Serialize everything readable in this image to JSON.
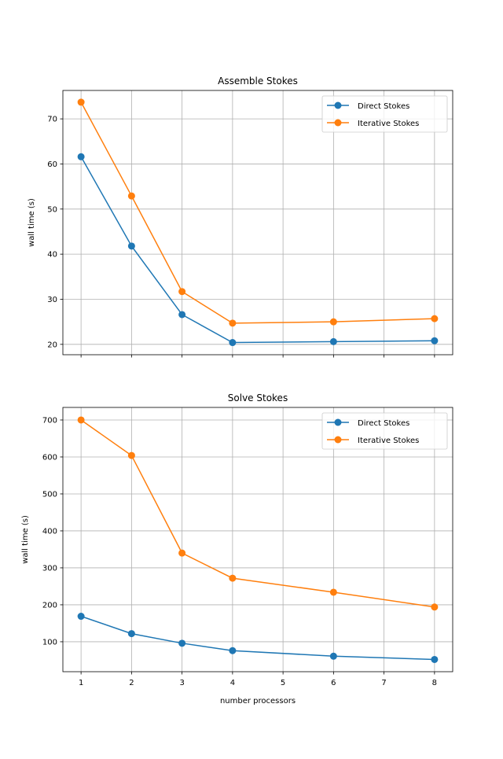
{
  "chart_data": [
    {
      "type": "line",
      "title": "Assemble Stokes",
      "xlabel": "",
      "ylabel": "wall time (s)",
      "x": [
        1,
        2,
        3,
        4,
        6,
        8
      ],
      "xlim": [
        0.64,
        8.36
      ],
      "ylim": [
        17.7,
        76.3
      ],
      "xticks": [
        1,
        2,
        3,
        4,
        5,
        6,
        7,
        8
      ],
      "xtick_labels_visible": false,
      "yticks": [
        20,
        30,
        40,
        50,
        60,
        70
      ],
      "grid": true,
      "legend": "top-right",
      "series": [
        {
          "name": "Direct Stokes",
          "color": "#1f77b4",
          "values": [
            61.6,
            41.8,
            26.6,
            20.4,
            20.6,
            20.8
          ]
        },
        {
          "name": "Iterative Stokes",
          "color": "#ff7f0e",
          "values": [
            73.7,
            52.9,
            31.7,
            24.7,
            25.0,
            25.7
          ]
        }
      ]
    },
    {
      "type": "line",
      "title": "Solve Stokes",
      "xlabel": "number processors",
      "ylabel": "wall time (s)",
      "x": [
        1,
        2,
        3,
        4,
        6,
        8
      ],
      "xlim": [
        0.64,
        8.36
      ],
      "ylim": [
        19,
        734
      ],
      "xticks": [
        1,
        2,
        3,
        4,
        5,
        6,
        7,
        8
      ],
      "xtick_labels_visible": true,
      "yticks": [
        100,
        200,
        300,
        400,
        500,
        600,
        700
      ],
      "grid": true,
      "legend": "top-right",
      "series": [
        {
          "name": "Direct Stokes",
          "color": "#1f77b4",
          "values": [
            169,
            122,
            96,
            76,
            61,
            52
          ]
        },
        {
          "name": "Iterative Stokes",
          "color": "#ff7f0e",
          "values": [
            700,
            604,
            340,
            272,
            234,
            194
          ]
        }
      ]
    }
  ]
}
